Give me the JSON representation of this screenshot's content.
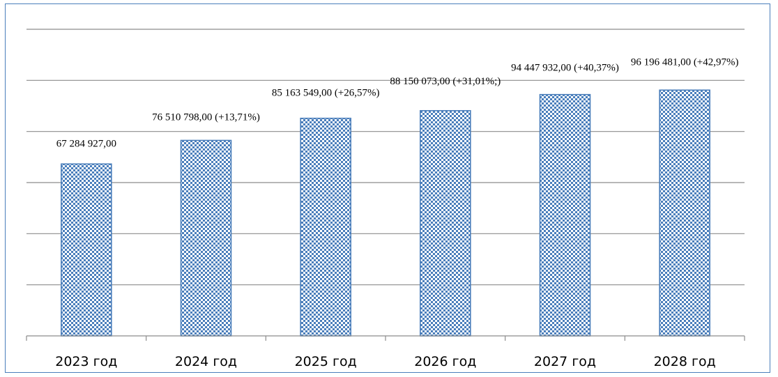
{
  "chart_data": {
    "type": "bar",
    "title": "",
    "xlabel": "",
    "ylabel": "",
    "categories": [
      "2023 год",
      "2024 год",
      "2025 год",
      "2026 год",
      "2027 год",
      "2028 год"
    ],
    "values": [
      67284927,
      76510798,
      85163549,
      88150073,
      94447932,
      96196481
    ],
    "data_labels": [
      "67 284 927,00",
      "76 510 798,00  (+13,71%)",
      "85 163 549,00 (+26,57%)",
      "88 150 073,00 (+31,01%;)",
      "94 447 932,00 (+40,37%)",
      "96 196 481,00 (+42,97%)"
    ],
    "ylim": [
      0,
      120000000
    ],
    "grid": true,
    "legend": "none",
    "bar_fill_pattern": "checkered",
    "colors": {
      "bar_outline": "#4a7ebb",
      "bar_pattern": "#4a7ebb",
      "gridline": "#8c8c8c",
      "frame": "#4a7ebb"
    }
  }
}
